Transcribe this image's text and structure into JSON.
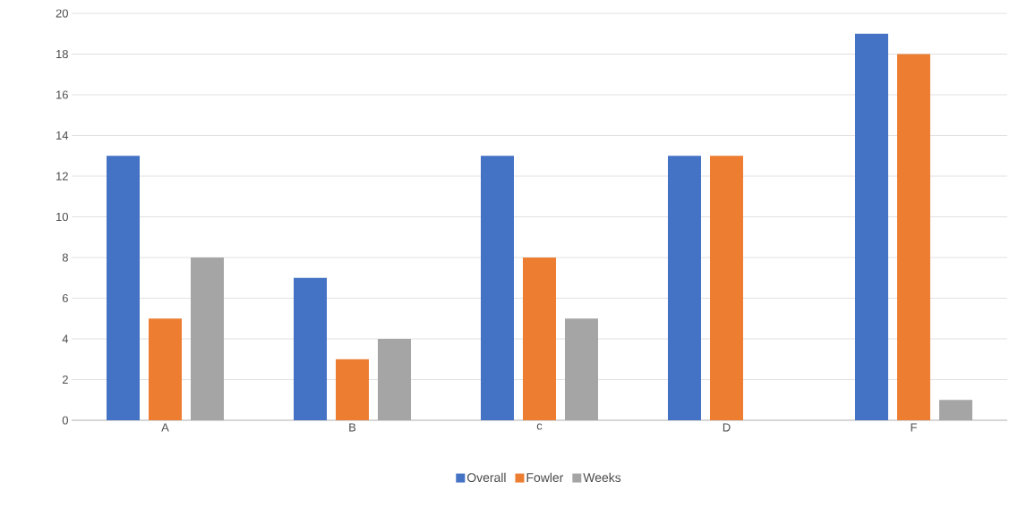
{
  "chart_data": {
    "type": "bar",
    "categories": [
      "A",
      "B",
      "c",
      "D",
      "F"
    ],
    "series": [
      {
        "name": "Overall",
        "color": "#4472c4",
        "values": [
          13,
          7,
          13,
          13,
          19
        ]
      },
      {
        "name": "Fowler",
        "color": "#ed7d31",
        "values": [
          5,
          3,
          8,
          13,
          18
        ]
      },
      {
        "name": "Weeks",
        "color": "#a5a5a5",
        "values": [
          8,
          4,
          5,
          null,
          1
        ]
      }
    ],
    "ylim": [
      0,
      20
    ],
    "yticks": [
      0,
      2,
      4,
      6,
      8,
      10,
      12,
      14,
      16,
      18,
      20
    ],
    "grid": "y",
    "legend": "bottom"
  }
}
